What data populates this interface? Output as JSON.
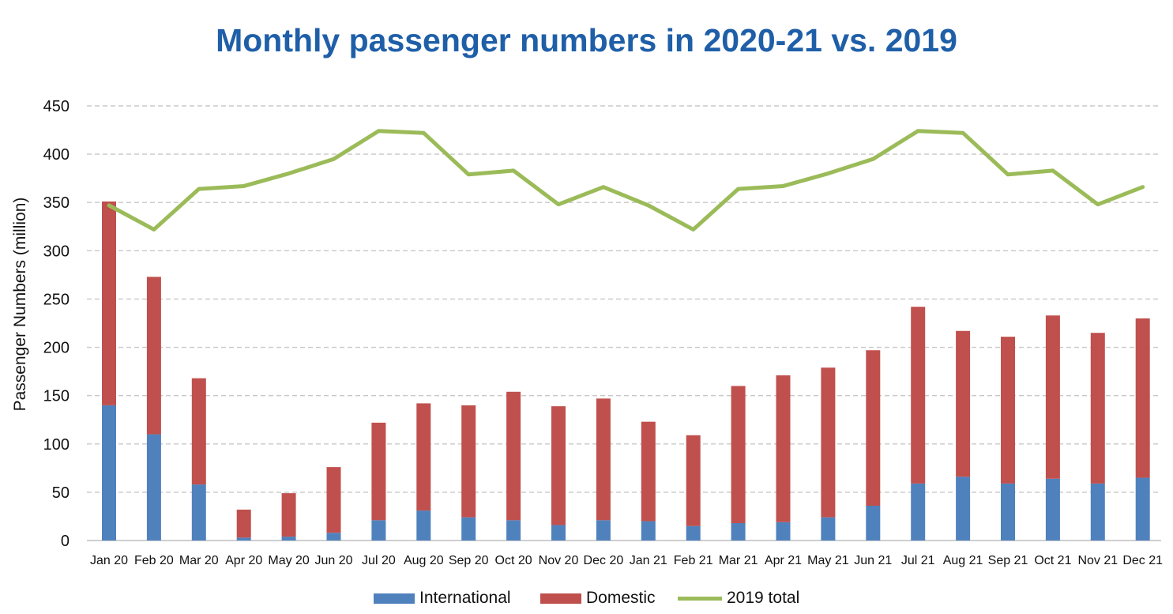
{
  "chart_data": {
    "type": "bar",
    "stacked": true,
    "title": "Monthly passenger numbers in 2020-21 vs. 2019",
    "ylabel": "Passenger  Numbers (million)",
    "xlabel": "",
    "ylim": [
      0,
      450
    ],
    "yticks": [
      0,
      50,
      100,
      150,
      200,
      250,
      300,
      350,
      400,
      450
    ],
    "grid": true,
    "legend_position": "bottom",
    "categories": [
      "Jan 20",
      "Feb 20",
      "Mar 20",
      "Apr 20",
      "May 20",
      "Jun 20",
      "Jul 20",
      "Aug 20",
      "Sep 20",
      "Oct 20",
      "Nov 20",
      "Dec 20",
      "Jan 21",
      "Feb 21",
      "Mar 21",
      "Apr 21",
      "May 21",
      "Jun 21",
      "Jul 21",
      "Aug 21",
      "Sep 21",
      "Oct 21",
      "Nov 21",
      "Dec 21"
    ],
    "series": [
      {
        "name": "International",
        "kind": "bar",
        "color": "#4f81bd",
        "values": [
          140,
          110,
          58,
          3,
          4,
          8,
          21,
          31,
          24,
          21,
          16,
          21,
          20,
          15,
          18,
          19,
          24,
          36,
          59,
          66,
          59,
          64,
          59,
          65
        ]
      },
      {
        "name": "Domestic",
        "kind": "bar",
        "color": "#c0504d",
        "values": [
          211,
          163,
          110,
          29,
          45,
          68,
          101,
          111,
          116,
          133,
          123,
          126,
          103,
          94,
          142,
          152,
          155,
          161,
          183,
          151,
          152,
          169,
          156,
          165
        ]
      },
      {
        "name": "2019 total",
        "kind": "line",
        "color": "#9bbb59",
        "values": [
          347,
          322,
          364,
          367,
          380,
          395,
          424,
          422,
          379,
          383,
          348,
          366,
          347,
          322,
          364,
          367,
          380,
          395,
          424,
          422,
          379,
          383,
          348,
          366
        ]
      }
    ]
  }
}
